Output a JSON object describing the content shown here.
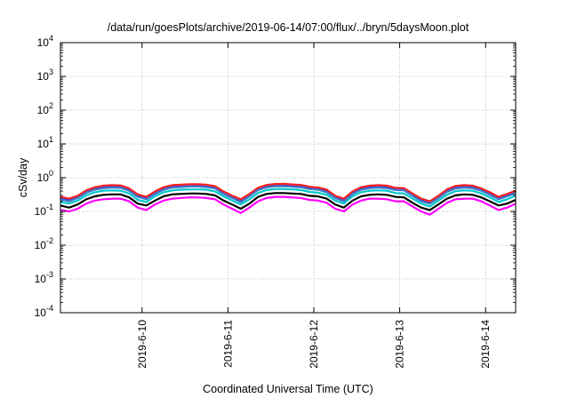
{
  "chart_data": {
    "type": "line",
    "title": "/data/run/goesPlots/archive/2019-06-14/07:00/flux/../bryn/5daysMoon.plot",
    "xlabel": "Coordinated Universal Time (UTC)",
    "ylabel": "cSv/day",
    "y_scale": "log",
    "ylim": [
      0.0001,
      10000
    ],
    "y_ticks": [
      {
        "base": "10",
        "exp": "-4",
        "value": 0.0001
      },
      {
        "base": "10",
        "exp": "-3",
        "value": 0.001
      },
      {
        "base": "10",
        "exp": "-2",
        "value": 0.01
      },
      {
        "base": "10",
        "exp": "-1",
        "value": 0.1
      },
      {
        "base": "10",
        "exp": "0",
        "value": 1
      },
      {
        "base": "10",
        "exp": "1",
        "value": 10
      },
      {
        "base": "10",
        "exp": "2",
        "value": 100
      },
      {
        "base": "10",
        "exp": "3",
        "value": 1000
      },
      {
        "base": "10",
        "exp": "4",
        "value": 10000
      }
    ],
    "xlim_days": [
      9.05,
      14.35
    ],
    "x_ticks": [
      {
        "label": "2019-6-10",
        "day": 10
      },
      {
        "label": "2019-6-11",
        "day": 11
      },
      {
        "label": "2019-6-12",
        "day": 12
      },
      {
        "label": "2019-6-13",
        "day": 13
      },
      {
        "label": "2019-6-14",
        "day": 14
      }
    ],
    "grid": true,
    "legend": "none",
    "x": [
      "2019-06-09 01:12",
      "2019-06-09 03:36",
      "2019-06-09 06:00",
      "2019-06-09 08:24",
      "2019-06-09 10:48",
      "2019-06-09 13:12",
      "2019-06-09 15:36",
      "2019-06-09 18:00",
      "2019-06-09 20:24",
      "2019-06-09 22:48",
      "2019-06-10 01:12",
      "2019-06-10 03:36",
      "2019-06-10 06:00",
      "2019-06-10 08:24",
      "2019-06-10 10:48",
      "2019-06-10 13:12",
      "2019-06-10 15:36",
      "2019-06-10 18:00",
      "2019-06-10 20:24",
      "2019-06-10 22:48",
      "2019-06-11 01:12",
      "2019-06-11 03:36",
      "2019-06-11 06:00",
      "2019-06-11 08:24",
      "2019-06-11 10:48",
      "2019-06-11 13:12",
      "2019-06-11 15:36",
      "2019-06-11 18:00",
      "2019-06-11 20:24",
      "2019-06-11 22:48",
      "2019-06-12 01:12",
      "2019-06-12 03:36",
      "2019-06-12 06:00",
      "2019-06-12 08:24",
      "2019-06-12 10:48",
      "2019-06-12 13:12",
      "2019-06-12 15:36",
      "2019-06-12 18:00",
      "2019-06-12 20:24",
      "2019-06-12 22:48",
      "2019-06-13 01:12",
      "2019-06-13 03:36",
      "2019-06-13 06:00",
      "2019-06-13 08:24",
      "2019-06-13 10:48",
      "2019-06-13 13:12",
      "2019-06-13 15:36",
      "2019-06-13 18:00",
      "2019-06-13 20:24",
      "2019-06-13 22:48",
      "2019-06-14 01:12",
      "2019-06-14 03:36",
      "2019-06-14 06:00",
      "2019-06-14 08:24"
    ],
    "series": [
      {
        "color": "#ff00ff",
        "values": [
          0.11,
          0.1,
          0.12,
          0.17,
          0.21,
          0.23,
          0.24,
          0.24,
          0.2,
          0.13,
          0.11,
          0.16,
          0.21,
          0.24,
          0.25,
          0.26,
          0.26,
          0.25,
          0.23,
          0.16,
          0.12,
          0.09,
          0.13,
          0.2,
          0.25,
          0.27,
          0.27,
          0.26,
          0.25,
          0.22,
          0.21,
          0.18,
          0.12,
          0.1,
          0.16,
          0.21,
          0.24,
          0.24,
          0.23,
          0.2,
          0.2,
          0.14,
          0.1,
          0.08,
          0.12,
          0.18,
          0.23,
          0.24,
          0.24,
          0.2,
          0.15,
          0.11,
          0.13,
          0.17
        ]
      },
      {
        "color": "#000000",
        "values": [
          0.15,
          0.13,
          0.16,
          0.23,
          0.28,
          0.31,
          0.32,
          0.32,
          0.26,
          0.17,
          0.15,
          0.21,
          0.28,
          0.32,
          0.33,
          0.34,
          0.34,
          0.33,
          0.3,
          0.21,
          0.16,
          0.12,
          0.17,
          0.27,
          0.33,
          0.35,
          0.35,
          0.34,
          0.33,
          0.29,
          0.28,
          0.24,
          0.16,
          0.13,
          0.21,
          0.28,
          0.31,
          0.32,
          0.31,
          0.27,
          0.26,
          0.18,
          0.13,
          0.11,
          0.16,
          0.24,
          0.3,
          0.32,
          0.31,
          0.26,
          0.2,
          0.15,
          0.17,
          0.22
        ]
      },
      {
        "color": "#00c8c8",
        "values": [
          0.19,
          0.17,
          0.21,
          0.3,
          0.37,
          0.41,
          0.42,
          0.41,
          0.34,
          0.22,
          0.19,
          0.28,
          0.37,
          0.42,
          0.44,
          0.45,
          0.45,
          0.44,
          0.39,
          0.28,
          0.21,
          0.16,
          0.23,
          0.35,
          0.43,
          0.46,
          0.46,
          0.45,
          0.43,
          0.38,
          0.36,
          0.31,
          0.21,
          0.17,
          0.28,
          0.37,
          0.41,
          0.42,
          0.41,
          0.35,
          0.34,
          0.24,
          0.17,
          0.14,
          0.21,
          0.31,
          0.4,
          0.42,
          0.41,
          0.34,
          0.26,
          0.19,
          0.23,
          0.29
        ]
      },
      {
        "color": "#1e3cff",
        "values": [
          0.25,
          0.22,
          0.27,
          0.39,
          0.48,
          0.53,
          0.55,
          0.54,
          0.44,
          0.29,
          0.25,
          0.36,
          0.48,
          0.55,
          0.57,
          0.59,
          0.59,
          0.57,
          0.51,
          0.36,
          0.27,
          0.21,
          0.3,
          0.46,
          0.56,
          0.6,
          0.6,
          0.58,
          0.56,
          0.49,
          0.47,
          0.4,
          0.27,
          0.22,
          0.36,
          0.48,
          0.53,
          0.55,
          0.53,
          0.46,
          0.45,
          0.31,
          0.22,
          0.18,
          0.27,
          0.41,
          0.52,
          0.55,
          0.53,
          0.44,
          0.34,
          0.25,
          0.3,
          0.38
        ]
      },
      {
        "color": "#ff2020",
        "values": [
          0.27,
          0.24,
          0.29,
          0.42,
          0.52,
          0.58,
          0.6,
          0.59,
          0.48,
          0.32,
          0.27,
          0.39,
          0.52,
          0.6,
          0.62,
          0.64,
          0.64,
          0.62,
          0.56,
          0.39,
          0.29,
          0.23,
          0.33,
          0.5,
          0.61,
          0.65,
          0.66,
          0.63,
          0.61,
          0.54,
          0.51,
          0.44,
          0.29,
          0.24,
          0.39,
          0.52,
          0.58,
          0.6,
          0.58,
          0.5,
          0.49,
          0.34,
          0.24,
          0.2,
          0.29,
          0.45,
          0.57,
          0.6,
          0.58,
          0.48,
          0.37,
          0.27,
          0.33,
          0.41
        ]
      },
      {
        "color": "#3c78c8",
        "values": [
          0.23,
          0.2,
          0.25,
          0.36,
          0.44,
          0.49,
          0.51,
          0.5,
          0.41,
          0.27,
          0.23,
          0.33,
          0.44,
          0.51,
          0.53,
          0.55,
          0.55,
          0.53,
          0.48,
          0.33,
          0.25,
          0.19,
          0.28,
          0.43,
          0.52,
          0.56,
          0.56,
          0.54,
          0.52,
          0.46,
          0.44,
          0.37,
          0.25,
          0.2,
          0.33,
          0.44,
          0.49,
          0.51,
          0.49,
          0.43,
          0.42,
          0.29,
          0.2,
          0.17,
          0.25,
          0.38,
          0.48,
          0.51,
          0.49,
          0.41,
          0.31,
          0.23,
          0.28,
          0.35
        ]
      }
    ]
  }
}
